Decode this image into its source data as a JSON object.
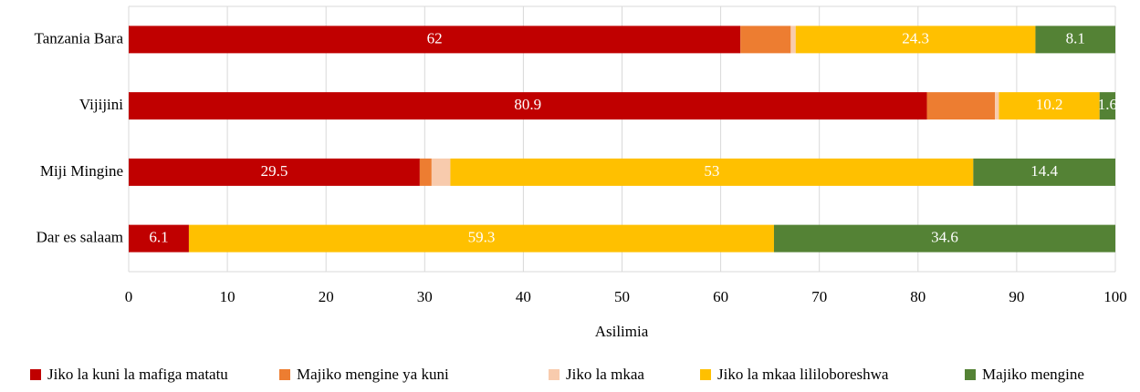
{
  "chart_data": {
    "type": "stacked-barh",
    "categories": [
      "Tanzania Bara",
      "Vijijini",
      "Miji Mingine",
      "Dar es salaam"
    ],
    "series": [
      {
        "name": "Jiko la kuni la mafiga matatu",
        "color": "#c00000",
        "values": [
          62,
          80.9,
          29.5,
          6.1
        ],
        "show_labels": true
      },
      {
        "name": "Majiko mengine ya kuni",
        "color": "#ed7d31",
        "values": [
          5.1,
          6.9,
          1.2,
          0
        ],
        "show_labels": false
      },
      {
        "name": "Jiko la mkaa",
        "color": "#f8cbad",
        "values": [
          0.5,
          0.4,
          1.9,
          0
        ],
        "show_labels": false
      },
      {
        "name": "Jiko la mkaa lililoboreshwa",
        "color": "#ffc000",
        "values": [
          24.3,
          10.2,
          53,
          59.3
        ],
        "show_labels": true
      },
      {
        "name": "Majiko mengine",
        "color": "#548235",
        "values": [
          8.1,
          1.6,
          14.4,
          34.6
        ],
        "show_labels": true
      }
    ],
    "xlabel": "Asilimia",
    "xlim": [
      0,
      100
    ],
    "xticks": [
      0,
      10,
      20,
      30,
      40,
      50,
      60,
      70,
      80,
      90,
      100
    ],
    "grid": true,
    "legend": "bottom"
  }
}
